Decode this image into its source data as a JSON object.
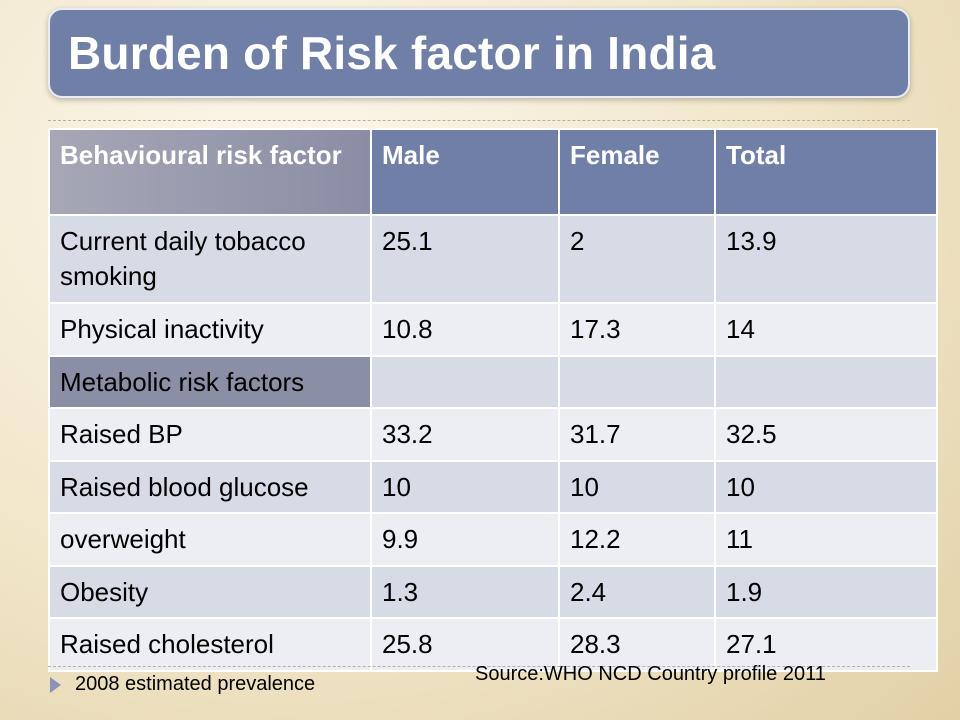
{
  "title": "Burden of Risk factor in India",
  "table": {
    "headers": [
      "Behavioural risk factor",
      "Male",
      "Female",
      "Total"
    ],
    "rows": [
      {
        "label": "Current daily tobacco smoking",
        "male": "25.1",
        "female": "2",
        "total": "13.9"
      },
      {
        "label": "Physical inactivity",
        "male": "10.8",
        "female": "17.3",
        "total": "14"
      },
      {
        "label": "Metabolic risk factors",
        "male": "",
        "female": "",
        "total": ""
      },
      {
        "label": "Raised BP",
        "male": "33.2",
        "female": "31.7",
        "total": "32.5"
      },
      {
        "label": "Raised blood glucose",
        "male": "10",
        "female": "10",
        "total": "10"
      },
      {
        "label": "overweight",
        "male": "9.9",
        "female": "12.2",
        "total": "11"
      },
      {
        "label": "Obesity",
        "male": "1.3",
        "female": "2.4",
        "total": "1.9"
      },
      {
        "label": "Raised cholesterol",
        "male": "25.8",
        "female": "28.3",
        "total": "27.1"
      }
    ]
  },
  "footer": {
    "note": "2008 estimated prevalence",
    "source": "Source:WHO NCD Country profile 2011"
  },
  "colors": {
    "header_bg": "#6f7fa6",
    "row_dark": "#d7dbe6",
    "row_light": "#eceef3",
    "section_label_bg": "#8a8fa5"
  }
}
